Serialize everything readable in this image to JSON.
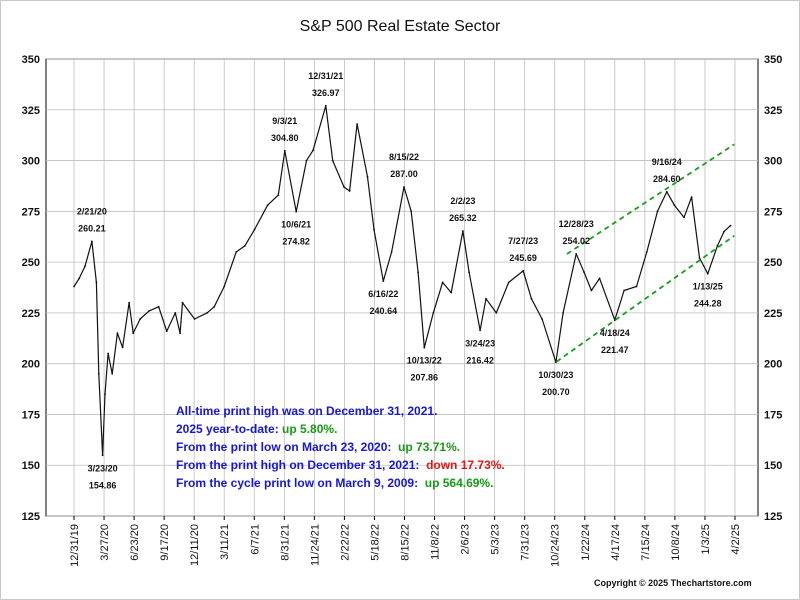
{
  "chart_data": {
    "type": "line",
    "title": "S&P 500 Real Estate Sector",
    "ylim": [
      125,
      350
    ],
    "y_ticks": [
      125,
      150,
      175,
      200,
      225,
      250,
      275,
      300,
      325,
      350
    ],
    "x_ticks": [
      "12/31/19",
      "3/27/20",
      "6/23/20",
      "9/17/20",
      "12/11/20",
      "3/11/21",
      "6/7/21",
      "8/31/21",
      "11/24/21",
      "2/22/22",
      "5/18/22",
      "8/15/22",
      "11/8/22",
      "2/6/23",
      "5/3/23",
      "7/31/23",
      "10/24/23",
      "1/22/24",
      "4/17/24",
      "7/15/24",
      "10/8/24",
      "1/3/25",
      "4/2/25"
    ],
    "x_range": [
      "2019-12-31",
      "2025-04-02"
    ],
    "grid": true,
    "series": [
      {
        "values": [
          [
            "2019-12-31",
            238
          ],
          [
            "2020-01-15",
            242
          ],
          [
            "2020-02-01",
            248
          ],
          [
            "2020-02-21",
            260.21
          ],
          [
            "2020-03-05",
            240
          ],
          [
            "2020-03-12",
            195
          ],
          [
            "2020-03-23",
            154.86
          ],
          [
            "2020-03-30",
            185
          ],
          [
            "2020-04-08",
            205
          ],
          [
            "2020-04-20",
            195
          ],
          [
            "2020-05-05",
            215
          ],
          [
            "2020-05-20",
            208
          ],
          [
            "2020-06-08",
            230
          ],
          [
            "2020-06-20",
            215
          ],
          [
            "2020-07-10",
            222
          ],
          [
            "2020-08-05",
            226
          ],
          [
            "2020-09-02",
            228
          ],
          [
            "2020-09-25",
            216
          ],
          [
            "2020-10-20",
            225
          ],
          [
            "2020-11-03",
            215
          ],
          [
            "2020-11-10",
            230
          ],
          [
            "2020-12-15",
            222
          ],
          [
            "2021-01-20",
            225
          ],
          [
            "2021-02-10",
            228
          ],
          [
            "2021-03-11",
            238
          ],
          [
            "2021-04-15",
            255
          ],
          [
            "2021-05-10",
            258
          ],
          [
            "2021-06-07",
            266
          ],
          [
            "2021-07-15",
            278
          ],
          [
            "2021-08-15",
            283
          ],
          [
            "2021-09-03",
            304.8
          ],
          [
            "2021-10-06",
            274.82
          ],
          [
            "2021-11-05",
            300
          ],
          [
            "2021-11-24",
            305
          ],
          [
            "2021-12-31",
            326.97
          ],
          [
            "2022-01-20",
            300
          ],
          [
            "2022-02-22",
            287
          ],
          [
            "2022-03-10",
            285
          ],
          [
            "2022-04-01",
            318
          ],
          [
            "2022-05-01",
            292
          ],
          [
            "2022-05-20",
            266
          ],
          [
            "2022-06-16",
            240.64
          ],
          [
            "2022-07-10",
            255
          ],
          [
            "2022-08-15",
            287.0
          ],
          [
            "2022-09-05",
            275
          ],
          [
            "2022-09-25",
            245
          ],
          [
            "2022-10-13",
            207.86
          ],
          [
            "2022-11-08",
            225
          ],
          [
            "2022-12-05",
            240
          ],
          [
            "2022-12-30",
            235
          ],
          [
            "2023-02-02",
            265.32
          ],
          [
            "2023-02-20",
            245
          ],
          [
            "2023-03-24",
            216.42
          ],
          [
            "2023-04-10",
            232
          ],
          [
            "2023-05-10",
            225
          ],
          [
            "2023-06-15",
            240
          ],
          [
            "2023-07-27",
            245.69
          ],
          [
            "2023-08-20",
            232
          ],
          [
            "2023-09-20",
            222
          ],
          [
            "2023-10-30",
            200.7
          ],
          [
            "2023-11-20",
            225
          ],
          [
            "2023-12-28",
            254.02
          ],
          [
            "2024-01-20",
            245
          ],
          [
            "2024-02-10",
            236
          ],
          [
            "2024-03-05",
            242
          ],
          [
            "2024-04-18",
            221.47
          ],
          [
            "2024-05-15",
            236
          ],
          [
            "2024-06-20",
            238
          ],
          [
            "2024-07-20",
            255
          ],
          [
            "2024-08-20",
            275
          ],
          [
            "2024-09-16",
            284.6
          ],
          [
            "2024-10-08",
            278
          ],
          [
            "2024-11-05",
            272
          ],
          [
            "2024-11-27",
            282
          ],
          [
            "2024-12-20",
            252
          ],
          [
            "2025-01-13",
            244.28
          ],
          [
            "2025-02-10",
            258
          ],
          [
            "2025-03-01",
            265
          ],
          [
            "2025-03-20",
            268
          ]
        ]
      }
    ],
    "annotations": [
      {
        "date": "2/21/20",
        "value": "260.21",
        "x": "2020-02-21",
        "y": 260.21,
        "pos": "above"
      },
      {
        "date": "3/23/20",
        "value": "154.86",
        "x": "2020-03-23",
        "y": 154.86,
        "pos": "below"
      },
      {
        "date": "9/3/21",
        "value": "304.80",
        "x": "2021-09-03",
        "y": 304.8,
        "pos": "above"
      },
      {
        "date": "10/6/21",
        "value": "274.82",
        "x": "2021-10-06",
        "y": 274.82,
        "pos": "below"
      },
      {
        "date": "12/31/21",
        "value": "326.97",
        "x": "2021-12-31",
        "y": 326.97,
        "pos": "above"
      },
      {
        "date": "8/15/22",
        "value": "287.00",
        "x": "2022-08-15",
        "y": 287.0,
        "pos": "above"
      },
      {
        "date": "6/16/22",
        "value": "240.64",
        "x": "2022-06-16",
        "y": 240.64,
        "pos": "below"
      },
      {
        "date": "10/13/22",
        "value": "207.86",
        "x": "2022-10-13",
        "y": 207.86,
        "pos": "below"
      },
      {
        "date": "2/2/23",
        "value": "265.32",
        "x": "2023-02-02",
        "y": 265.32,
        "pos": "above"
      },
      {
        "date": "3/24/23",
        "value": "216.42",
        "x": "2023-03-24",
        "y": 216.42,
        "pos": "below"
      },
      {
        "date": "7/27/23",
        "value": "245.69",
        "x": "2023-07-27",
        "y": 245.69,
        "pos": "above"
      },
      {
        "date": "10/30/23",
        "value": "200.70",
        "x": "2023-10-30",
        "y": 200.7,
        "pos": "below"
      },
      {
        "date": "12/28/23",
        "value": "254.02",
        "x": "2023-12-28",
        "y": 254.02,
        "pos": "above"
      },
      {
        "date": "4/18/24",
        "value": "221.47",
        "x": "2024-04-18",
        "y": 221.47,
        "pos": "below"
      },
      {
        "date": "9/16/24",
        "value": "284.60",
        "x": "2024-09-16",
        "y": 284.6,
        "pos": "above"
      },
      {
        "date": "1/13/25",
        "value": "244.28",
        "x": "2025-01-13",
        "y": 244.28,
        "pos": "below"
      }
    ],
    "trend_channel": {
      "color": "#1a9c1a",
      "upper": [
        [
          "2023-12-01",
          254
        ],
        [
          "2025-03-31",
          308
        ]
      ],
      "lower": [
        [
          "2023-11-01",
          201
        ],
        [
          "2025-03-31",
          263
        ]
      ]
    }
  },
  "notes": [
    {
      "parts": [
        {
          "text": "All-time print high was on December 31, 2021.",
          "color": "#1515e0"
        }
      ]
    },
    {
      "parts": [
        {
          "text": "2025 year-to-date: ",
          "color": "#1515e0"
        },
        {
          "text": "up 5.80%.",
          "color": "#179b17"
        }
      ]
    },
    {
      "parts": [
        {
          "text": "From the print low on March 23, 2020:  ",
          "color": "#1515e0"
        },
        {
          "text": "up 73.71%.",
          "color": "#179b17"
        }
      ]
    },
    {
      "parts": [
        {
          "text": "From the print high on December 31, 2021:  ",
          "color": "#1515e0"
        },
        {
          "text": "down 17.73%.",
          "color": "#e01515"
        }
      ]
    },
    {
      "parts": [
        {
          "text": "From the cycle print low on March 9, 2009:  ",
          "color": "#1515e0"
        },
        {
          "text": "up 564.69%.",
          "color": "#179b17"
        }
      ]
    }
  ],
  "copyright": "Copyright © 2025 Thechartstore.com"
}
